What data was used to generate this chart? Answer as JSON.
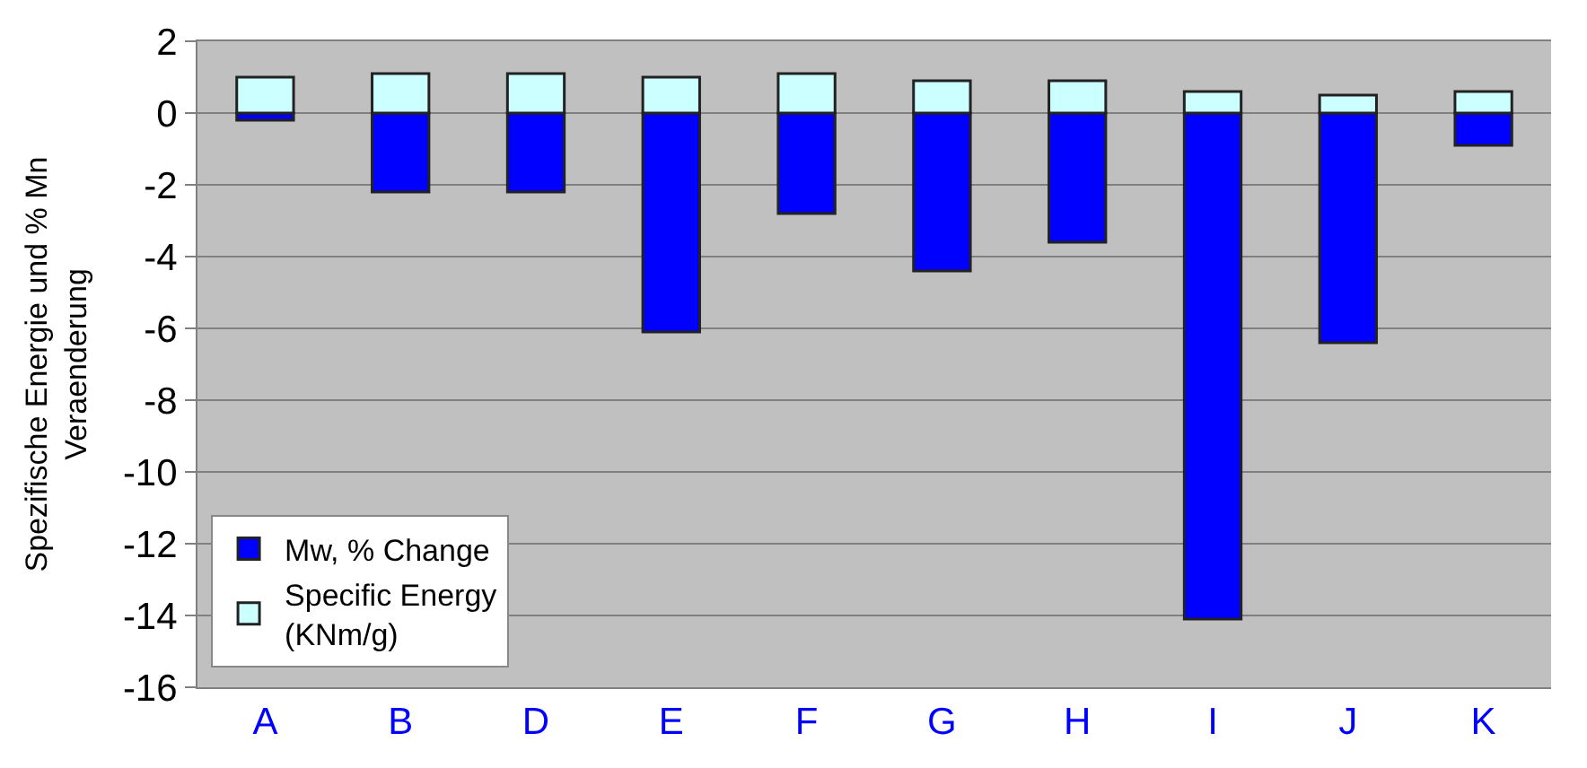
{
  "chart_data": {
    "type": "bar",
    "stacked": true,
    "ylabel": "Spezifische Energie und % Mn\nVeraenderung",
    "categories": [
      "A",
      "B",
      "D",
      "E",
      "F",
      "G",
      "H",
      "I",
      "J",
      "K"
    ],
    "series": [
      {
        "name": "Mw, % Change",
        "color": "#0000ff",
        "values": [
          -0.2,
          -2.2,
          -2.2,
          -6.1,
          -2.8,
          -4.4,
          -3.6,
          -14.1,
          -6.4,
          -0.9
        ]
      },
      {
        "name": "Specific Energy\n(KNm/g)",
        "color": "#ccffff",
        "values": [
          1.0,
          1.1,
          1.1,
          1.0,
          1.1,
          0.9,
          0.9,
          0.6,
          0.5,
          0.6
        ]
      }
    ],
    "ylim": [
      -16,
      2
    ],
    "yticks": [
      -16,
      -14,
      -12,
      -10,
      -8,
      -6,
      -4,
      -2,
      0,
      2
    ],
    "grid": "y",
    "legend": "bottom left"
  }
}
